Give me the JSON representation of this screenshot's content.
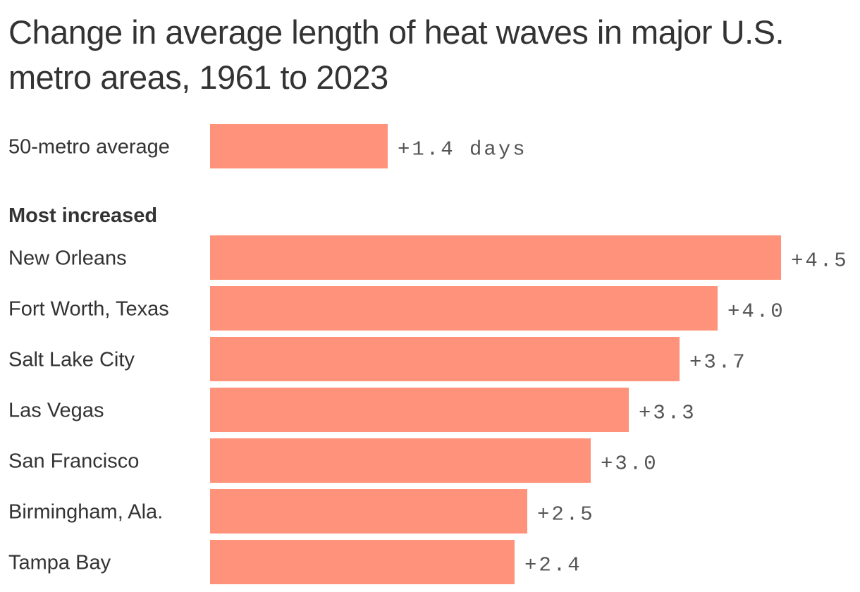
{
  "title": "Change in average length of heat waves in major U.S. metro areas, 1961 to 2023",
  "colors": {
    "bar": "#ff927a",
    "text": "#333333",
    "value_text": "#555555"
  },
  "chart_data": {
    "type": "bar",
    "orientation": "horizontal",
    "title": "Change in average length of heat waves in major U.S. metro areas, 1961 to 2023",
    "xlabel": "",
    "ylabel": "",
    "xlim": [
      0,
      4.5
    ],
    "grid": false,
    "legend": "none",
    "average": {
      "category": "50-metro average",
      "value": 1.4,
      "label": "+1.4 days"
    },
    "section_label": "Most increased",
    "categories": [
      "New Orleans",
      "Fort Worth, Texas",
      "Salt Lake City",
      "Las Vegas",
      "San Francisco",
      "Birmingham, Ala.",
      "Tampa Bay"
    ],
    "values": [
      4.5,
      4.0,
      3.7,
      3.3,
      3.0,
      2.5,
      2.4
    ],
    "value_labels": [
      "+4.5",
      "+4.0",
      "+3.7",
      "+3.3",
      "+3.0",
      "+2.5",
      "+2.4"
    ]
  }
}
